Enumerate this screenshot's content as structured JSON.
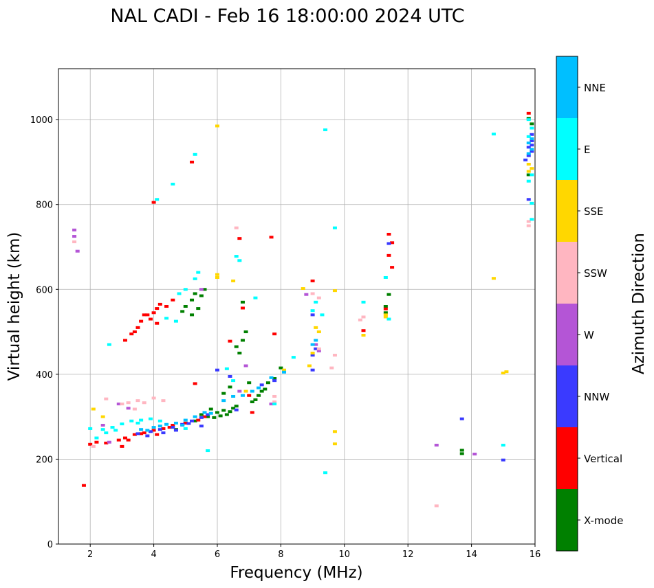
{
  "chart_data": {
    "type": "scatter",
    "title": "NAL CADI - Feb 16 18:00:00 2024 UTC",
    "xlabel": "Frequency (MHz)",
    "ylabel": "Virtual height (km)",
    "xlim": [
      1,
      16
    ],
    "ylim": [
      0,
      1120
    ],
    "xticks": [
      "2",
      "4",
      "6",
      "8",
      "10",
      "12",
      "14",
      "16"
    ],
    "yticks": [
      "0",
      "200",
      "400",
      "600",
      "800",
      "1000"
    ],
    "grid": true,
    "colorbar": {
      "label": "Azimuth Direction",
      "categories": [
        {
          "name": "X-mode",
          "color": "#008000"
        },
        {
          "name": "Vertical",
          "color": "#ff0000"
        },
        {
          "name": "NNW",
          "color": "#3a3aff"
        },
        {
          "name": "W",
          "color": "#b455d6"
        },
        {
          "name": "SSW",
          "color": "#ffb6c1"
        },
        {
          "name": "SSE",
          "color": "#ffd700"
        },
        {
          "name": "E",
          "color": "#00ffff"
        },
        {
          "name": "NNE",
          "color": "#00bfff"
        }
      ]
    },
    "series": [
      {
        "name": "X-mode",
        "points": [
          [
            4.9,
            548
          ],
          [
            5.0,
            560
          ],
          [
            5.2,
            575
          ],
          [
            5.3,
            590
          ],
          [
            5.5,
            585
          ],
          [
            5.6,
            600
          ],
          [
            5.2,
            540
          ],
          [
            5.4,
            555
          ],
          [
            4.7,
            270
          ],
          [
            5.0,
            285
          ],
          [
            5.3,
            290
          ],
          [
            5.5,
            305
          ],
          [
            5.7,
            300
          ],
          [
            5.9,
            298
          ],
          [
            6.0,
            310
          ],
          [
            6.1,
            302
          ],
          [
            6.2,
            315
          ],
          [
            6.4,
            312
          ],
          [
            6.5,
            320
          ],
          [
            6.6,
            325
          ],
          [
            6.3,
            305
          ],
          [
            5.8,
            318
          ],
          [
            6.7,
            450
          ],
          [
            6.8,
            480
          ],
          [
            6.9,
            500
          ],
          [
            6.8,
            570
          ],
          [
            6.6,
            465
          ],
          [
            7.0,
            380
          ],
          [
            7.2,
            340
          ],
          [
            7.3,
            350
          ],
          [
            7.5,
            365
          ],
          [
            7.6,
            380
          ],
          [
            7.8,
            390
          ],
          [
            8.0,
            415
          ],
          [
            11.3,
            545
          ],
          [
            11.3,
            560
          ],
          [
            11.4,
            588
          ],
          [
            13.7,
            213
          ],
          [
            13.7,
            221
          ],
          [
            15.8,
            1003
          ],
          [
            15.9,
            990
          ],
          [
            15.8,
            870
          ],
          [
            6.4,
            370
          ],
          [
            6.2,
            355
          ],
          [
            7.1,
            335
          ],
          [
            7.4,
            360
          ]
        ]
      },
      {
        "name": "Vertical",
        "points": [
          [
            3.1,
            480
          ],
          [
            3.3,
            495
          ],
          [
            3.5,
            510
          ],
          [
            3.6,
            525
          ],
          [
            3.7,
            540
          ],
          [
            3.9,
            530
          ],
          [
            4.0,
            545
          ],
          [
            4.1,
            520
          ],
          [
            4.2,
            565
          ],
          [
            4.4,
            560
          ],
          [
            4.6,
            575
          ],
          [
            4.1,
            555
          ],
          [
            3.4,
            500
          ],
          [
            3.8,
            540
          ],
          [
            2.0,
            235
          ],
          [
            2.2,
            240
          ],
          [
            2.5,
            238
          ],
          [
            2.9,
            245
          ],
          [
            3.1,
            250
          ],
          [
            3.4,
            258
          ],
          [
            3.7,
            262
          ],
          [
            4.0,
            268
          ],
          [
            4.3,
            272
          ],
          [
            4.6,
            280
          ],
          [
            5.0,
            285
          ],
          [
            5.4,
            292
          ],
          [
            5.6,
            300
          ],
          [
            3.0,
            230
          ],
          [
            3.2,
            245
          ],
          [
            3.6,
            260
          ],
          [
            4.1,
            258
          ],
          [
            4.5,
            275
          ],
          [
            5.3,
            378
          ],
          [
            6.4,
            478
          ],
          [
            6.7,
            720
          ],
          [
            6.8,
            556
          ],
          [
            7.0,
            350
          ],
          [
            7.1,
            310
          ],
          [
            7.7,
            723
          ],
          [
            7.8,
            495
          ],
          [
            9.0,
            620
          ],
          [
            10.6,
            503
          ],
          [
            11.4,
            730
          ],
          [
            11.5,
            710
          ],
          [
            11.5,
            652
          ],
          [
            11.4,
            680
          ],
          [
            11.3,
            554
          ],
          [
            4.0,
            805
          ],
          [
            5.2,
            900
          ],
          [
            15.8,
            1015
          ],
          [
            1.8,
            138
          ]
        ]
      },
      {
        "name": "NNW",
        "points": [
          [
            3.5,
            260
          ],
          [
            3.9,
            265
          ],
          [
            4.2,
            270
          ],
          [
            4.6,
            275
          ],
          [
            4.9,
            282
          ],
          [
            5.2,
            290
          ],
          [
            5.5,
            298
          ],
          [
            5.7,
            305
          ],
          [
            3.8,
            255
          ],
          [
            4.3,
            262
          ],
          [
            4.7,
            268
          ],
          [
            5.1,
            284
          ],
          [
            5.5,
            278
          ],
          [
            6.0,
            410
          ],
          [
            6.4,
            395
          ],
          [
            6.6,
            316
          ],
          [
            7.4,
            375
          ],
          [
            7.8,
            385
          ],
          [
            9.0,
            445
          ],
          [
            9.1,
            460
          ],
          [
            9.0,
            540
          ],
          [
            9.0,
            410
          ],
          [
            13.7,
            295
          ],
          [
            15.0,
            198
          ],
          [
            15.8,
            812
          ],
          [
            15.9,
            950
          ],
          [
            15.9,
            925
          ],
          [
            15.7,
            905
          ],
          [
            15.8,
            935
          ],
          [
            15.9,
            965
          ],
          [
            15.8,
            915
          ],
          [
            15.9,
            940
          ],
          [
            11.4,
            708
          ]
        ]
      },
      {
        "name": "W",
        "points": [
          [
            1.5,
            740
          ],
          [
            1.5,
            725
          ],
          [
            1.6,
            690
          ],
          [
            2.6,
            240
          ],
          [
            2.9,
            330
          ],
          [
            3.2,
            320
          ],
          [
            5.5,
            600
          ],
          [
            6.7,
            360
          ],
          [
            6.9,
            420
          ],
          [
            8.8,
            588
          ],
          [
            9.1,
            470
          ],
          [
            9.2,
            455
          ],
          [
            12.9,
            233
          ],
          [
            14.1,
            212
          ],
          [
            2.4,
            280
          ],
          [
            7.7,
            330
          ]
        ]
      },
      {
        "name": "SSW",
        "points": [
          [
            3.0,
            330
          ],
          [
            3.2,
            333
          ],
          [
            3.5,
            338
          ],
          [
            3.7,
            333
          ],
          [
            4.0,
            344
          ],
          [
            4.3,
            338
          ],
          [
            3.4,
            318
          ],
          [
            2.5,
            342
          ],
          [
            1.5,
            712
          ],
          [
            6.6,
            745
          ],
          [
            7.8,
            348
          ],
          [
            7.8,
            335
          ],
          [
            9.0,
            590
          ],
          [
            9.2,
            580
          ],
          [
            9.2,
            460
          ],
          [
            9.6,
            415
          ],
          [
            9.7,
            445
          ],
          [
            10.5,
            528
          ],
          [
            10.6,
            535
          ],
          [
            12.9,
            90
          ],
          [
            15.8,
            750
          ],
          [
            15.8,
            760
          ],
          [
            2.1,
            230
          ]
        ]
      },
      {
        "name": "SSE",
        "points": [
          [
            2.1,
            318
          ],
          [
            2.4,
            300
          ],
          [
            6.0,
            985
          ],
          [
            6.0,
            628
          ],
          [
            6.0,
            635
          ],
          [
            6.9,
            360
          ],
          [
            8.1,
            410
          ],
          [
            8.7,
            602
          ],
          [
            8.9,
            420
          ],
          [
            9.0,
            450
          ],
          [
            9.1,
            510
          ],
          [
            9.2,
            500
          ],
          [
            9.7,
            597
          ],
          [
            9.7,
            265
          ],
          [
            9.7,
            236
          ],
          [
            10.6,
            492
          ],
          [
            11.3,
            540
          ],
          [
            11.3,
            535
          ],
          [
            14.7,
            626
          ],
          [
            15.0,
            403
          ],
          [
            15.1,
            406
          ],
          [
            15.8,
            895
          ],
          [
            15.9,
            885
          ],
          [
            15.8,
            878
          ],
          [
            6.5,
            620
          ]
        ]
      },
      {
        "name": "E",
        "points": [
          [
            2.2,
            250
          ],
          [
            2.5,
            262
          ],
          [
            2.7,
            275
          ],
          [
            3.0,
            283
          ],
          [
            3.3,
            290
          ],
          [
            3.6,
            292
          ],
          [
            3.9,
            295
          ],
          [
            4.2,
            290
          ],
          [
            2.4,
            270
          ],
          [
            2.8,
            268
          ],
          [
            3.5,
            285
          ],
          [
            4.8,
            590
          ],
          [
            5.0,
            600
          ],
          [
            5.3,
            625
          ],
          [
            5.4,
            640
          ],
          [
            2.6,
            470
          ],
          [
            4.1,
            812
          ],
          [
            4.4,
            532
          ],
          [
            4.7,
            525
          ],
          [
            5.0,
            272
          ],
          [
            5.7,
            220
          ],
          [
            6.3,
            413
          ],
          [
            6.5,
            385
          ],
          [
            6.6,
            678
          ],
          [
            6.7,
            668
          ],
          [
            7.2,
            580
          ],
          [
            7.8,
            330
          ],
          [
            8.4,
            440
          ],
          [
            9.0,
            550
          ],
          [
            9.1,
            570
          ],
          [
            9.3,
            540
          ],
          [
            9.4,
            976
          ],
          [
            9.4,
            168
          ],
          [
            9.7,
            745
          ],
          [
            10.6,
            570
          ],
          [
            11.3,
            628
          ],
          [
            11.4,
            530
          ],
          [
            14.7,
            966
          ],
          [
            15.0,
            233
          ],
          [
            15.8,
            1000
          ],
          [
            15.9,
            980
          ],
          [
            15.8,
            960
          ],
          [
            15.9,
            870
          ],
          [
            15.8,
            855
          ],
          [
            15.9,
            765
          ],
          [
            15.9,
            803
          ],
          [
            4.6,
            848
          ],
          [
            5.3,
            918
          ],
          [
            2.0,
            272
          ]
        ]
      },
      {
        "name": "NNE",
        "points": [
          [
            3.6,
            270
          ],
          [
            4.0,
            275
          ],
          [
            4.4,
            282
          ],
          [
            4.7,
            285
          ],
          [
            5.0,
            292
          ],
          [
            5.3,
            300
          ],
          [
            5.6,
            310
          ],
          [
            3.8,
            268
          ],
          [
            4.2,
            278
          ],
          [
            4.9,
            280
          ],
          [
            5.8,
            308
          ],
          [
            6.2,
            338
          ],
          [
            6.5,
            348
          ],
          [
            7.1,
            360
          ],
          [
            7.7,
            392
          ],
          [
            8.1,
            405
          ],
          [
            9.0,
            470
          ],
          [
            9.1,
            480
          ],
          [
            15.8,
            920
          ],
          [
            15.9,
            930
          ],
          [
            15.8,
            945
          ],
          [
            15.9,
            955
          ],
          [
            6.8,
            350
          ],
          [
            7.3,
            368
          ]
        ]
      }
    ]
  }
}
